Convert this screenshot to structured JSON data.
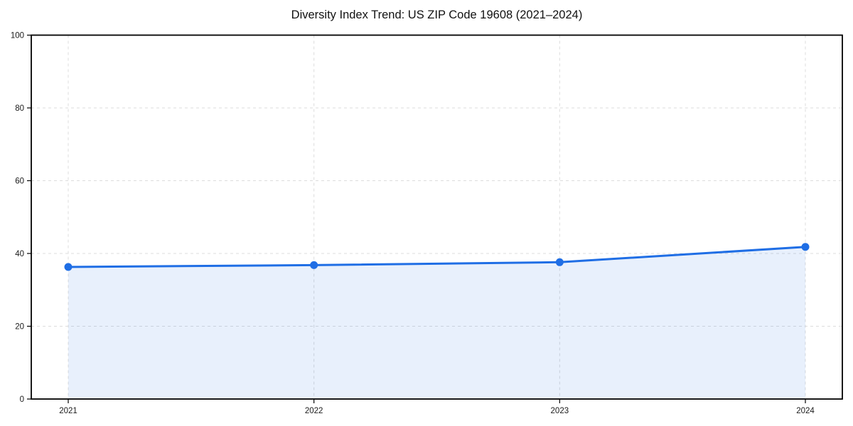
{
  "page": {
    "background": "#ffffff"
  },
  "chart_data": {
    "type": "area",
    "title": "Diversity Index Trend: US ZIP Code 19608 (2021–2024)",
    "categories": [
      "2021",
      "2022",
      "2023",
      "2024"
    ],
    "series": [
      {
        "name": "Diversity Index",
        "values": [
          36.3,
          36.8,
          37.6,
          41.8
        ]
      }
    ],
    "xlabel": "",
    "ylabel": "",
    "ylim": [
      0,
      100
    ],
    "yticks": [
      0,
      20,
      40,
      60,
      80,
      100
    ],
    "grid": true,
    "legend": false,
    "colors": {
      "line": "#1f6ee5",
      "marker": "#1f6ee5",
      "fill": "rgba(31, 110, 229, 0.10)",
      "grid": "#dcdcdc",
      "spine": "#000000",
      "tick": "#000000",
      "tick_label": "#1a1a1a",
      "title": "#111111"
    }
  }
}
